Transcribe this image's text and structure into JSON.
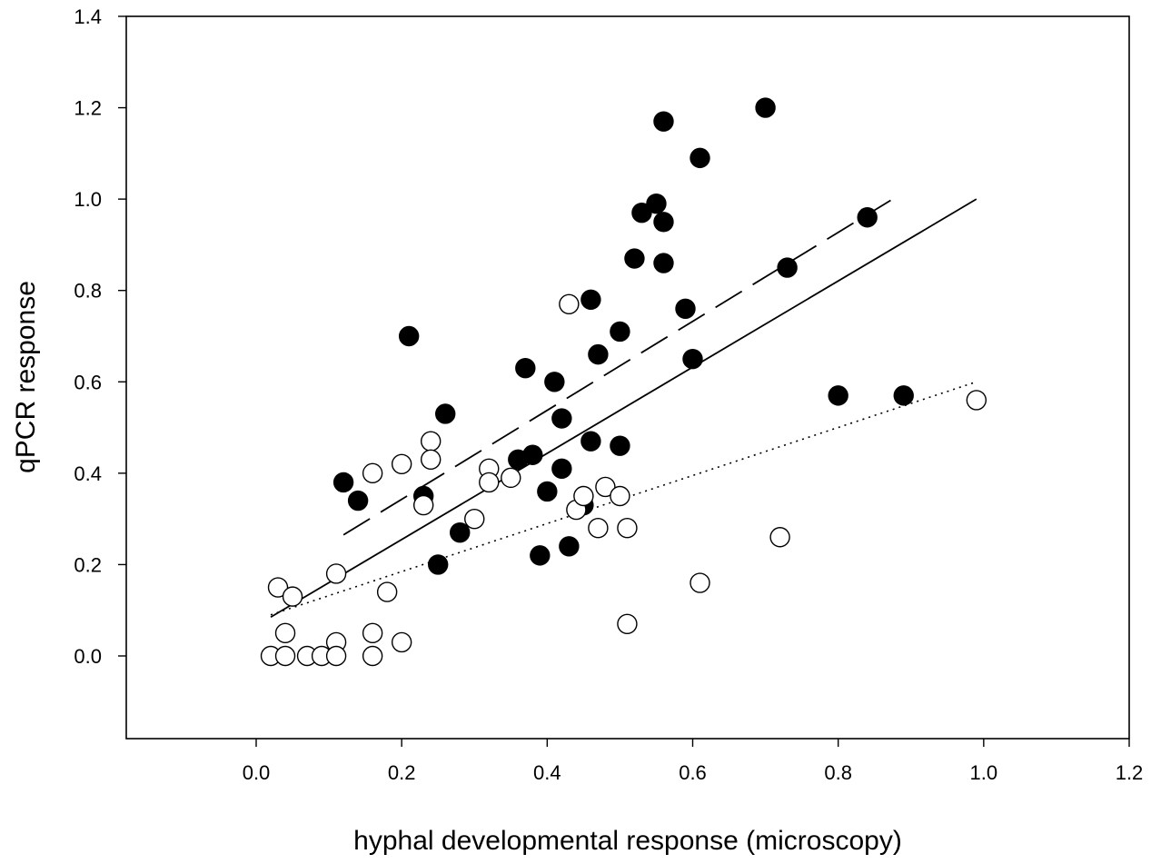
{
  "chart_data": {
    "type": "scatter",
    "title": "",
    "xlabel": "hyphal developmental response (microscopy)",
    "ylabel": "qPCR response",
    "xlim": [
      -0.2,
      1.2
    ],
    "ylim": [
      -0.18,
      1.4
    ],
    "xticks": [
      0.0,
      0.2,
      0.4,
      0.6,
      0.8,
      1.0,
      1.2
    ],
    "xtick_labels": [
      "0.0",
      "0.2",
      "0.4",
      "0.6",
      "0.8",
      "1.0",
      "1.2"
    ],
    "yticks": [
      0.0,
      0.2,
      0.4,
      0.6,
      0.8,
      1.0,
      1.2,
      1.4
    ],
    "ytick_labels": [
      "0.0",
      "0.2",
      "0.4",
      "0.6",
      "0.8",
      "1.0",
      "1.2",
      "1.4"
    ],
    "grid": false,
    "legend": "none",
    "series": [
      {
        "name": "filled",
        "marker": "filled-circle",
        "color": "#000000",
        "points": [
          [
            0.12,
            0.38
          ],
          [
            0.14,
            0.34
          ],
          [
            0.21,
            0.7
          ],
          [
            0.23,
            0.35
          ],
          [
            0.25,
            0.2
          ],
          [
            0.26,
            0.53
          ],
          [
            0.28,
            0.27
          ],
          [
            0.36,
            0.43
          ],
          [
            0.37,
            0.63
          ],
          [
            0.38,
            0.44
          ],
          [
            0.39,
            0.22
          ],
          [
            0.4,
            0.36
          ],
          [
            0.41,
            0.6
          ],
          [
            0.42,
            0.52
          ],
          [
            0.42,
            0.41
          ],
          [
            0.43,
            0.24
          ],
          [
            0.45,
            0.33
          ],
          [
            0.46,
            0.47
          ],
          [
            0.46,
            0.78
          ],
          [
            0.47,
            0.66
          ],
          [
            0.5,
            0.46
          ],
          [
            0.5,
            0.71
          ],
          [
            0.52,
            0.87
          ],
          [
            0.53,
            0.97
          ],
          [
            0.55,
            0.99
          ],
          [
            0.56,
            1.17
          ],
          [
            0.56,
            0.95
          ],
          [
            0.56,
            0.86
          ],
          [
            0.59,
            0.76
          ],
          [
            0.6,
            0.65
          ],
          [
            0.61,
            1.09
          ],
          [
            0.7,
            1.2
          ],
          [
            0.73,
            0.85
          ],
          [
            0.8,
            0.57
          ],
          [
            0.84,
            0.96
          ],
          [
            0.89,
            0.57
          ]
        ]
      },
      {
        "name": "open",
        "marker": "open-circle",
        "color": "#000000",
        "points": [
          [
            0.02,
            0.0
          ],
          [
            0.03,
            0.15
          ],
          [
            0.04,
            0.05
          ],
          [
            0.04,
            0.0
          ],
          [
            0.05,
            0.13
          ],
          [
            0.07,
            0.0
          ],
          [
            0.09,
            0.0
          ],
          [
            0.11,
            0.18
          ],
          [
            0.11,
            0.03
          ],
          [
            0.11,
            0.0
          ],
          [
            0.16,
            0.4
          ],
          [
            0.16,
            0.05
          ],
          [
            0.16,
            0.0
          ],
          [
            0.18,
            0.14
          ],
          [
            0.2,
            0.42
          ],
          [
            0.2,
            0.03
          ],
          [
            0.23,
            0.33
          ],
          [
            0.24,
            0.47
          ],
          [
            0.24,
            0.43
          ],
          [
            0.3,
            0.3
          ],
          [
            0.32,
            0.41
          ],
          [
            0.32,
            0.38
          ],
          [
            0.35,
            0.39
          ],
          [
            0.43,
            0.77
          ],
          [
            0.44,
            0.32
          ],
          [
            0.45,
            0.35
          ],
          [
            0.47,
            0.28
          ],
          [
            0.48,
            0.37
          ],
          [
            0.5,
            0.35
          ],
          [
            0.51,
            0.07
          ],
          [
            0.51,
            0.28
          ],
          [
            0.61,
            0.16
          ],
          [
            0.72,
            0.26
          ],
          [
            0.99,
            0.56
          ]
        ]
      }
    ],
    "fit_lines": [
      {
        "name": "filled fit",
        "style": "dashed",
        "x": [
          0.12,
          0.88
        ],
        "y": [
          0.265,
          1.005
        ]
      },
      {
        "name": "all fit",
        "style": "solid",
        "x": [
          0.02,
          0.99
        ],
        "y": [
          0.085,
          1.0
        ]
      },
      {
        "name": "open fit",
        "style": "dotted",
        "x": [
          0.02,
          0.99
        ],
        "y": [
          0.09,
          0.6
        ]
      }
    ]
  }
}
